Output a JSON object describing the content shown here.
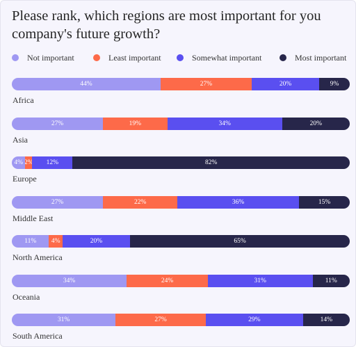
{
  "question": "Please rank, which regions are most important for you company's future growth?",
  "colors": {
    "not_important": "#9f98f2",
    "least_important": "#fd6a49",
    "somewhat_important": "#5a4ff0",
    "most_important": "#27264a"
  },
  "legend": [
    {
      "label": "Not important",
      "color": "#9f98f2"
    },
    {
      "label": "Least important",
      "color": "#fd6a49"
    },
    {
      "label": "Somewhat important",
      "color": "#5a4ff0"
    },
    {
      "label": "Most important",
      "color": "#27264a"
    }
  ],
  "chart_data": {
    "type": "bar",
    "orientation": "horizontal",
    "stacked": true,
    "title": "Please rank, which regions are most important for you company's future growth?",
    "categories": [
      "Africa",
      "Asia",
      "Europe",
      "Middle East",
      "North America",
      "Oceania",
      "South America"
    ],
    "series": [
      {
        "name": "Not important",
        "color": "#9f98f2",
        "values": [
          44,
          27,
          4,
          27,
          11,
          34,
          31
        ]
      },
      {
        "name": "Least important",
        "color": "#fd6a49",
        "values": [
          27,
          19,
          2,
          22,
          4,
          24,
          27
        ]
      },
      {
        "name": "Somewhat important",
        "color": "#5a4ff0",
        "values": [
          20,
          34,
          12,
          36,
          20,
          31,
          29
        ]
      },
      {
        "name": "Most important",
        "color": "#27264a",
        "values": [
          9,
          20,
          82,
          15,
          65,
          11,
          14
        ]
      }
    ],
    "value_suffix": "%",
    "legend_position": "top",
    "grid": false
  }
}
